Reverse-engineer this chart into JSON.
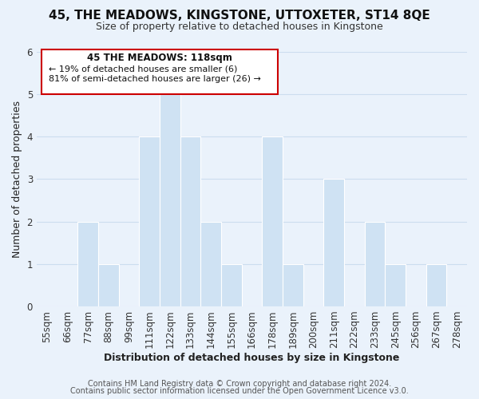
{
  "title": "45, THE MEADOWS, KINGSTONE, UTTOXETER, ST14 8QE",
  "subtitle": "Size of property relative to detached houses in Kingstone",
  "xlabel": "Distribution of detached houses by size in Kingstone",
  "ylabel": "Number of detached properties",
  "footer_lines": [
    "Contains HM Land Registry data © Crown copyright and database right 2024.",
    "Contains public sector information licensed under the Open Government Licence v3.0."
  ],
  "bins": [
    "55sqm",
    "66sqm",
    "77sqm",
    "88sqm",
    "99sqm",
    "111sqm",
    "122sqm",
    "133sqm",
    "144sqm",
    "155sqm",
    "166sqm",
    "178sqm",
    "189sqm",
    "200sqm",
    "211sqm",
    "222sqm",
    "233sqm",
    "245sqm",
    "256sqm",
    "267sqm",
    "278sqm"
  ],
  "values": [
    0,
    0,
    2,
    1,
    0,
    4,
    5,
    4,
    2,
    1,
    0,
    4,
    1,
    0,
    3,
    0,
    2,
    1,
    0,
    1,
    0
  ],
  "highlight_index": 6,
  "bar_color": "#cfe2f3",
  "ylim": [
    0,
    6
  ],
  "yticks": [
    0,
    1,
    2,
    3,
    4,
    5,
    6
  ],
  "annotation_title": "45 THE MEADOWS: 118sqm",
  "annotation_line1": "← 19% of detached houses are smaller (6)",
  "annotation_line2": "81% of semi-detached houses are larger (26) →",
  "annotation_box_color": "#ffffff",
  "annotation_box_edge_color": "#cc0000",
  "grid_color": "#ccddef",
  "background_color": "#eaf2fb",
  "title_fontsize": 11,
  "subtitle_fontsize": 9,
  "axis_label_fontsize": 9,
  "tick_fontsize": 8.5,
  "footer_fontsize": 7
}
